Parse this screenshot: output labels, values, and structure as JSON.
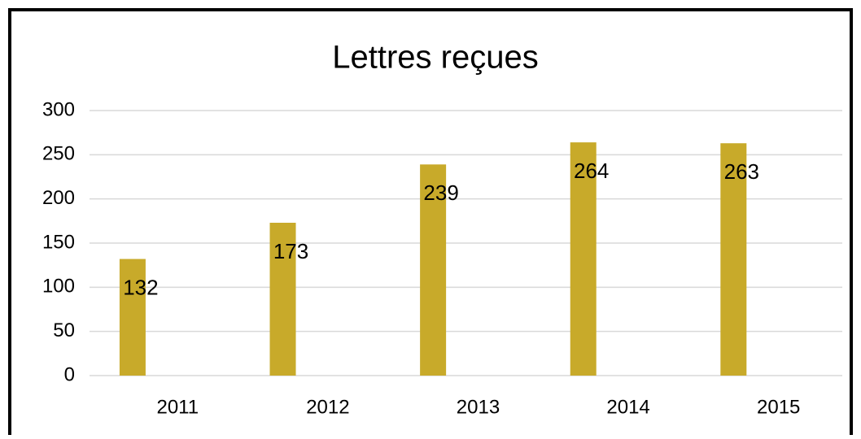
{
  "chart_data": {
    "type": "bar",
    "title": "Lettres reçues",
    "categories": [
      "2011",
      "2012",
      "2013",
      "2014",
      "2015"
    ],
    "values": [
      132,
      173,
      239,
      264,
      263
    ],
    "color": "#c8aa2a",
    "ylim": [
      0,
      300
    ],
    "yticks": [
      0,
      50,
      100,
      150,
      200,
      250,
      300
    ],
    "grid": true
  }
}
